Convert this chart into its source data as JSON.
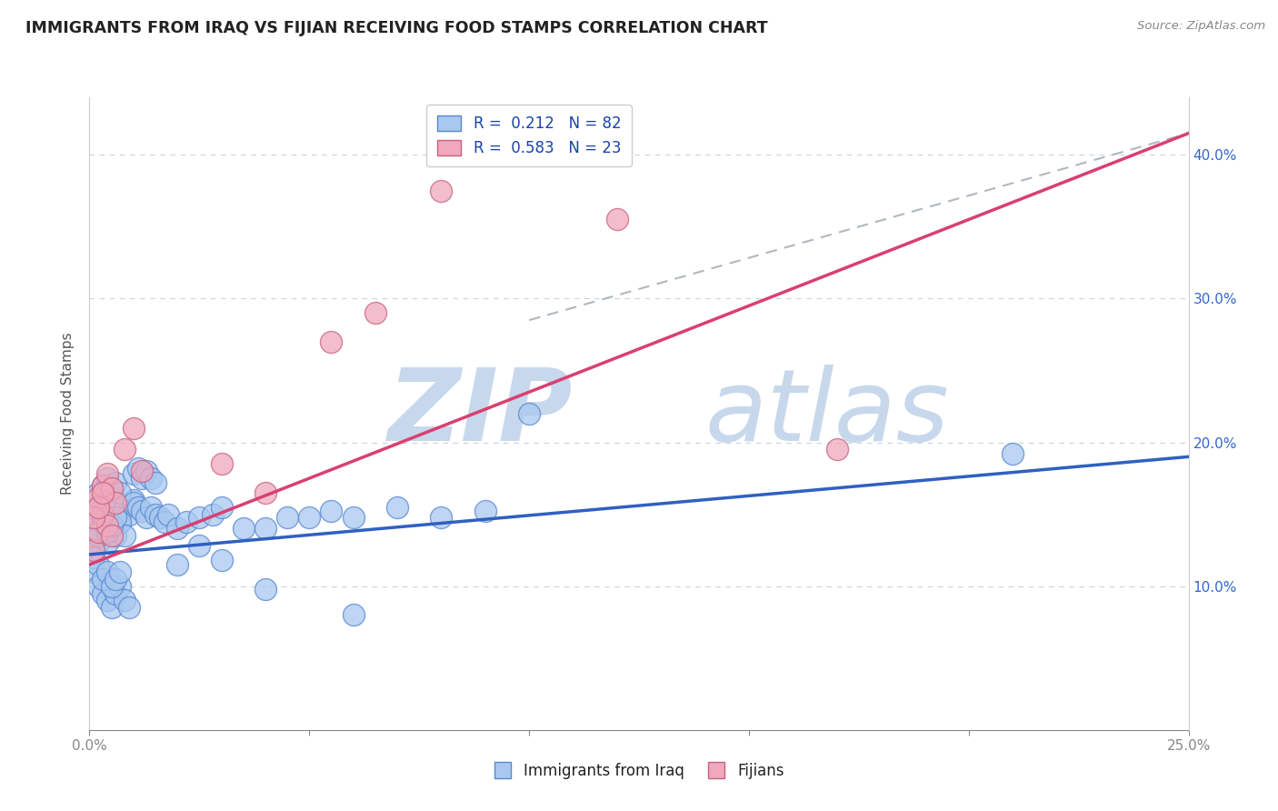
{
  "title": "IMMIGRANTS FROM IRAQ VS FIJIAN RECEIVING FOOD STAMPS CORRELATION CHART",
  "source": "Source: ZipAtlas.com",
  "ylabel": "Receiving Food Stamps",
  "xlim": [
    0.0,
    0.25
  ],
  "ylim": [
    0.0,
    0.44
  ],
  "x_ticks": [
    0.0,
    0.05,
    0.1,
    0.15,
    0.2,
    0.25
  ],
  "y_ticks": [
    0.0,
    0.1,
    0.2,
    0.3,
    0.4
  ],
  "x_tick_labels": [
    "0.0%",
    "",
    "",
    "",
    "",
    "25.0%"
  ],
  "y_tick_labels_right": [
    "",
    "10.0%",
    "20.0%",
    "30.0%",
    "40.0%"
  ],
  "legend_label1": "Immigrants from Iraq",
  "legend_label2": "Fijians",
  "R1": "0.212",
  "N1": "82",
  "R2": "0.583",
  "N2": "23",
  "color_iraq": "#a8c8f0",
  "color_fijian": "#f0a8bc",
  "line_color_iraq": "#3060c0",
  "line_color_fijian": "#d84070",
  "scatter_edge_iraq": "#5888d0",
  "scatter_edge_fijian": "#c86080",
  "watermark_color": "#c0d0e4",
  "background_color": "#ffffff",
  "grid_color": "#c8d4e0",
  "iraq_trend_x": [
    0.0,
    0.25
  ],
  "iraq_trend_y": [
    0.122,
    0.19
  ],
  "fijian_trend_x": [
    0.0,
    0.25
  ],
  "fijian_trend_y": [
    0.115,
    0.415
  ],
  "dash_line_x": [
    0.1,
    0.25
  ],
  "dash_line_y": [
    0.285,
    0.415
  ],
  "iraq_x": [
    0.002,
    0.003,
    0.004,
    0.005,
    0.006,
    0.007,
    0.008,
    0.009,
    0.01,
    0.001,
    0.002,
    0.003,
    0.004,
    0.005,
    0.006,
    0.007,
    0.008,
    0.001,
    0.002,
    0.003,
    0.004,
    0.005,
    0.006,
    0.007,
    0.008,
    0.009,
    0.001,
    0.002,
    0.003,
    0.004,
    0.005,
    0.006,
    0.007,
    0.001,
    0.002,
    0.003,
    0.004,
    0.005,
    0.006,
    0.002,
    0.003,
    0.004,
    0.005,
    0.006,
    0.007,
    0.01,
    0.011,
    0.012,
    0.013,
    0.014,
    0.015,
    0.016,
    0.017,
    0.018,
    0.01,
    0.011,
    0.012,
    0.013,
    0.014,
    0.015,
    0.02,
    0.022,
    0.025,
    0.028,
    0.03,
    0.035,
    0.04,
    0.045,
    0.05,
    0.055,
    0.06,
    0.07,
    0.08,
    0.09,
    0.1,
    0.02,
    0.025,
    0.03,
    0.04,
    0.06,
    0.21
  ],
  "iraq_y": [
    0.155,
    0.14,
    0.165,
    0.145,
    0.16,
    0.145,
    0.155,
    0.15,
    0.16,
    0.125,
    0.13,
    0.145,
    0.13,
    0.14,
    0.135,
    0.145,
    0.135,
    0.11,
    0.1,
    0.095,
    0.09,
    0.085,
    0.095,
    0.1,
    0.09,
    0.085,
    0.12,
    0.115,
    0.105,
    0.11,
    0.1,
    0.105,
    0.11,
    0.14,
    0.135,
    0.145,
    0.138,
    0.142,
    0.148,
    0.165,
    0.17,
    0.175,
    0.168,
    0.172,
    0.165,
    0.158,
    0.155,
    0.152,
    0.148,
    0.155,
    0.15,
    0.148,
    0.145,
    0.15,
    0.178,
    0.182,
    0.175,
    0.18,
    0.175,
    0.172,
    0.14,
    0.145,
    0.148,
    0.15,
    0.155,
    0.14,
    0.14,
    0.148,
    0.148,
    0.152,
    0.148,
    0.155,
    0.148,
    0.152,
    0.22,
    0.115,
    0.128,
    0.118,
    0.098,
    0.08,
    0.192
  ],
  "fijian_x": [
    0.001,
    0.002,
    0.003,
    0.004,
    0.005,
    0.002,
    0.003,
    0.004,
    0.005,
    0.006,
    0.001,
    0.002,
    0.003,
    0.008,
    0.01,
    0.012,
    0.03,
    0.04,
    0.055,
    0.065,
    0.08,
    0.12,
    0.17
  ],
  "fijian_y": [
    0.125,
    0.138,
    0.15,
    0.142,
    0.135,
    0.162,
    0.17,
    0.178,
    0.168,
    0.158,
    0.148,
    0.155,
    0.165,
    0.195,
    0.21,
    0.18,
    0.185,
    0.165,
    0.27,
    0.29,
    0.375,
    0.355,
    0.195
  ]
}
